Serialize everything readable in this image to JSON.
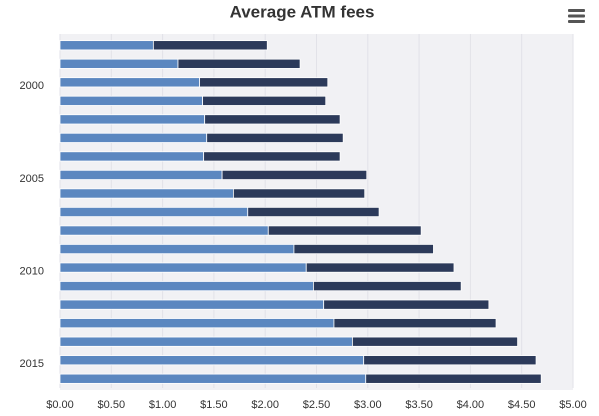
{
  "chart_data": {
    "type": "stacked-bar-horizontal",
    "title": "Average ATM fees",
    "categories": [
      null,
      null,
      "2000",
      null,
      null,
      null,
      null,
      "2005",
      null,
      null,
      null,
      null,
      "2010",
      null,
      null,
      null,
      null,
      "2015",
      null
    ],
    "series": [
      {
        "color": "#5b87c0",
        "values": [
          0.91,
          1.15,
          1.36,
          1.39,
          1.41,
          1.43,
          1.4,
          1.58,
          1.69,
          1.83,
          2.03,
          2.28,
          2.4,
          2.47,
          2.57,
          2.67,
          2.85,
          2.96,
          2.98
        ]
      },
      {
        "color": "#2c3a5a",
        "values": [
          1.11,
          1.19,
          1.25,
          1.2,
          1.32,
          1.33,
          1.33,
          1.41,
          1.28,
          1.28,
          1.49,
          1.36,
          1.44,
          1.44,
          1.61,
          1.58,
          1.61,
          1.68,
          1.71
        ]
      }
    ],
    "xlim": [
      0,
      5
    ],
    "xticks": [
      {
        "value": 0,
        "label": "$0.00"
      },
      {
        "value": 0.5,
        "label": "$0.50"
      },
      {
        "value": 1,
        "label": "$1.00"
      },
      {
        "value": 1.5,
        "label": "$1.50"
      },
      {
        "value": 2,
        "label": "$2.00"
      },
      {
        "value": 2.5,
        "label": "$2.50"
      },
      {
        "value": 3,
        "label": "$3.00"
      },
      {
        "value": 3.5,
        "label": "$3.50"
      },
      {
        "value": 4,
        "label": "$4.00"
      },
      {
        "value": 4.5,
        "label": "$4.50"
      },
      {
        "value": 5,
        "label": "$5.00"
      }
    ],
    "grid": true
  }
}
